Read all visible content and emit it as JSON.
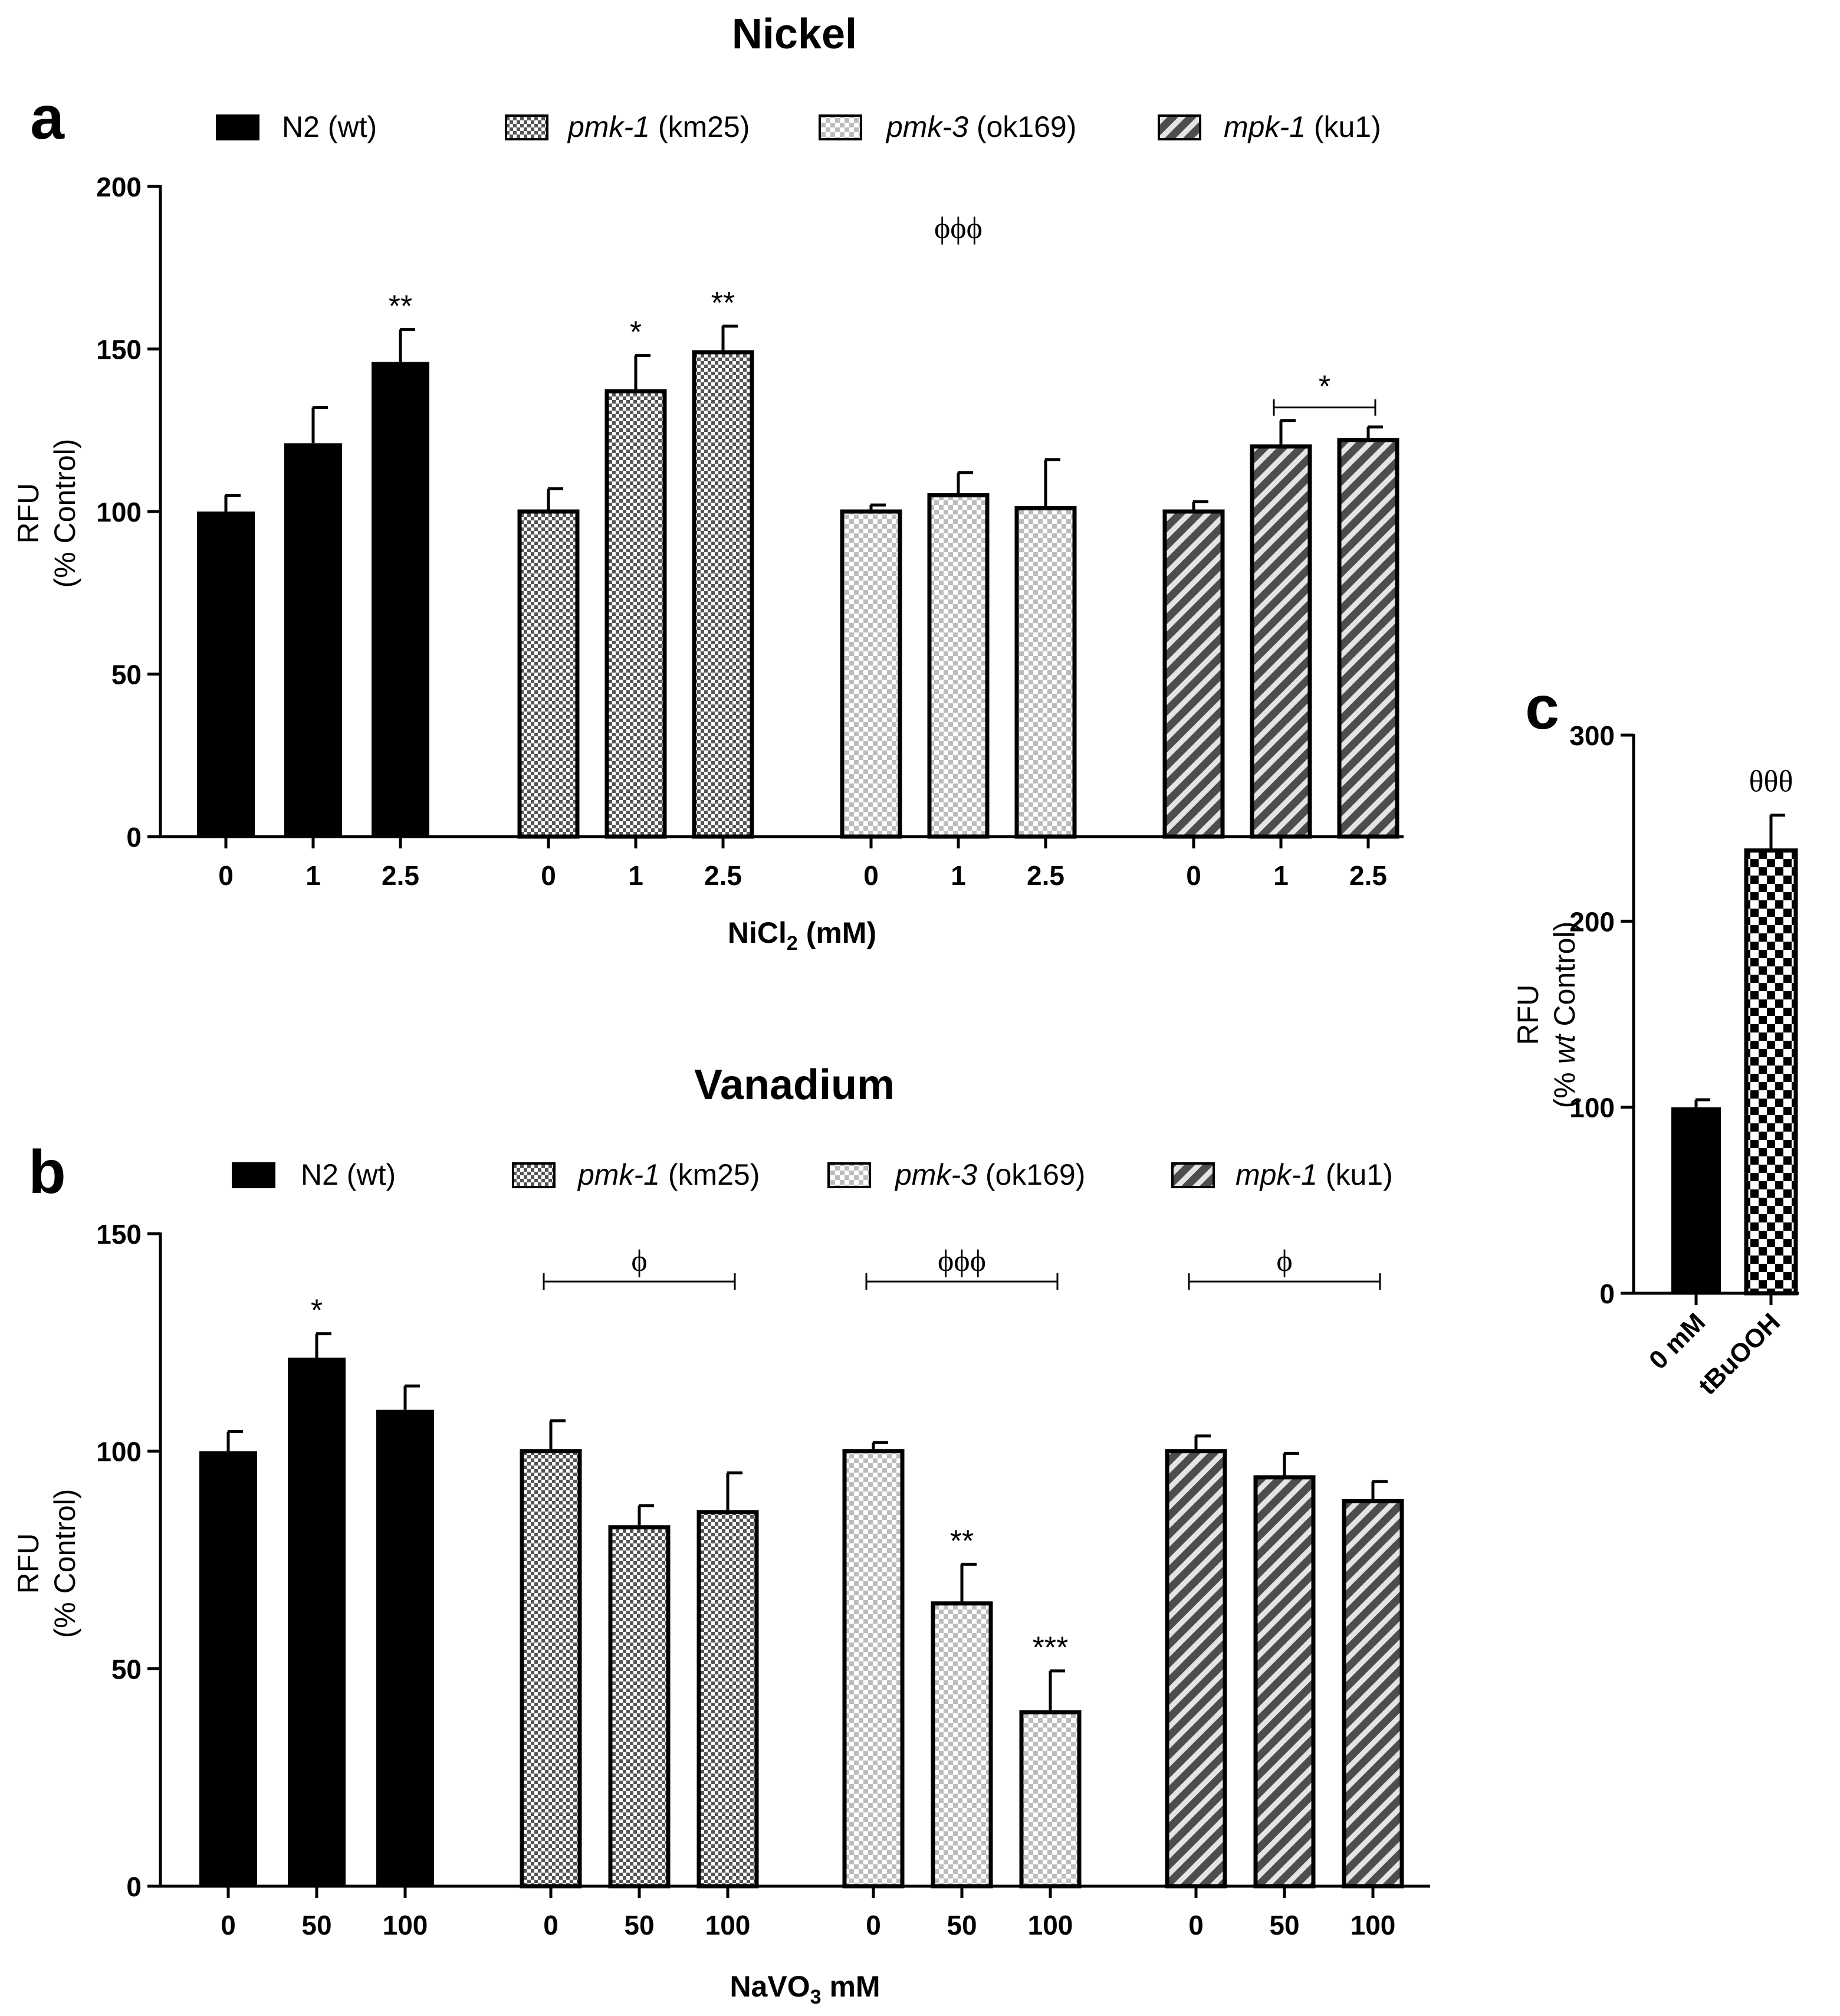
{
  "colors": {
    "black": "#000000",
    "fill_pmk1_dark": "#555555",
    "fill_pmk1_light": "#ffffff",
    "fill_pmk3_dark": "#bcbcbc",
    "fill_mpk1_dark": "#4d4d4d",
    "fill_mpk1_light": "#e4e4e4"
  },
  "chart_data": [
    {
      "panel": "a",
      "type": "bar",
      "title": "Nickel",
      "xlabel": "NiCl",
      "xlabel_sub": "2",
      "xlabel_tail": " (mM)",
      "ylabel_line1": "RFU",
      "ylabel_line2": "(% Control)",
      "ylim": [
        0,
        200
      ],
      "yticks": [
        0,
        50,
        100,
        150,
        200
      ],
      "legend_position": "top",
      "legend": [
        {
          "italic": "",
          "plain": "N2 (wt)",
          "pattern": "solid"
        },
        {
          "italic": "pmk-1",
          "plain": " (km25)",
          "pattern": "fine-check"
        },
        {
          "italic": "pmk-3",
          "plain": " (ok169)",
          "pattern": "light-check"
        },
        {
          "italic": "mpk-1",
          "plain": " (ku1)",
          "pattern": "stripes"
        }
      ],
      "groups": [
        {
          "name": "N2 (wt)",
          "pattern": "solid",
          "doses": [
            "0",
            "1",
            "2.5"
          ],
          "values": [
            100,
            121,
            146
          ],
          "errors": [
            5,
            11,
            10
          ],
          "stars": [
            "",
            "",
            "**"
          ]
        },
        {
          "name": "pmk-1 (km25)",
          "pattern": "fine-check",
          "doses": [
            "0",
            "1",
            "2.5"
          ],
          "values": [
            100,
            137,
            149
          ],
          "errors": [
            7,
            11,
            8
          ],
          "stars": [
            "",
            "*",
            "**"
          ]
        },
        {
          "name": "pmk-3 (ok169)",
          "pattern": "light-check",
          "doses": [
            "0",
            "1",
            "2.5"
          ],
          "values": [
            100,
            105,
            101
          ],
          "errors": [
            2,
            7,
            15
          ],
          "stars": [
            "",
            "",
            ""
          ]
        },
        {
          "name": "mpk-1 (ku1)",
          "pattern": "stripes",
          "doses": [
            "0",
            "1",
            "2.5"
          ],
          "values": [
            100,
            120,
            122
          ],
          "errors": [
            3,
            8,
            4
          ],
          "stars": [
            "",
            "",
            ""
          ]
        }
      ],
      "annotations": [
        {
          "text": "ϕϕϕ",
          "group": 2,
          "bracket": false,
          "y": 187
        },
        {
          "text": "*",
          "group": 3,
          "bracket": true,
          "from_bar": 1,
          "to_bar": 2,
          "y": 132
        }
      ]
    },
    {
      "panel": "b",
      "type": "bar",
      "title": "Vanadium",
      "xlabel": "NaVO",
      "xlabel_sub": "3",
      "xlabel_tail": " mM",
      "ylabel_line1": "RFU",
      "ylabel_line2": "(% Control)",
      "ylim": [
        0,
        150
      ],
      "yticks": [
        0,
        50,
        100,
        150
      ],
      "legend_position": "top",
      "legend": [
        {
          "italic": "",
          "plain": "N2 (wt)",
          "pattern": "solid"
        },
        {
          "italic": "pmk-1",
          "plain": " (km25)",
          "pattern": "fine-check"
        },
        {
          "italic": "pmk-3",
          "plain": " (ok169)",
          "pattern": "light-check"
        },
        {
          "italic": "mpk-1",
          "plain": " (ku1)",
          "pattern": "stripes"
        }
      ],
      "groups": [
        {
          "name": "N2 (wt)",
          "pattern": "solid",
          "doses": [
            "0",
            "50",
            "100"
          ],
          "values": [
            100,
            121.5,
            109.5
          ],
          "errors": [
            4.5,
            5.5,
            5.5
          ],
          "stars": [
            "",
            "*",
            ""
          ]
        },
        {
          "name": "pmk-1 (km25)",
          "pattern": "fine-check",
          "doses": [
            "0",
            "50",
            "100"
          ],
          "values": [
            100,
            82.5,
            86
          ],
          "errors": [
            7,
            5,
            9
          ],
          "stars": [
            "",
            "",
            ""
          ]
        },
        {
          "name": "pmk-3 (ok169)",
          "pattern": "light-check",
          "doses": [
            "0",
            "50",
            "100"
          ],
          "values": [
            100,
            65,
            40
          ],
          "errors": [
            2,
            9,
            9.5
          ],
          "stars": [
            "",
            "**",
            "***"
          ]
        },
        {
          "name": "mpk-1 (ku1)",
          "pattern": "stripes",
          "doses": [
            "0",
            "50",
            "100"
          ],
          "values": [
            100,
            94,
            88.5
          ],
          "errors": [
            3.5,
            5.5,
            4.5
          ],
          "stars": [
            "",
            "",
            ""
          ]
        }
      ],
      "annotations": [
        {
          "text": "ϕ",
          "group": 1,
          "bracket": true,
          "from_bar": 0,
          "to_bar": 2,
          "y": 139
        },
        {
          "text": "ϕϕϕ",
          "group": 2,
          "bracket": true,
          "from_bar": 0,
          "to_bar": 2,
          "y": 139
        },
        {
          "text": "ϕ",
          "group": 3,
          "bracket": true,
          "from_bar": 0,
          "to_bar": 2,
          "y": 139
        }
      ]
    },
    {
      "panel": "c",
      "type": "bar",
      "title": "",
      "ylabel_line1": "RFU",
      "ylabel_pre": "(% ",
      "ylabel_italic": "wt",
      "ylabel_post": " Control)",
      "ylim": [
        0,
        300
      ],
      "yticks": [
        0,
        100,
        200,
        300
      ],
      "categories": [
        "0 mM",
        "tBuOOH"
      ],
      "patterns": [
        "solid",
        "big-check"
      ],
      "values": [
        100,
        238
      ],
      "errors": [
        4,
        19
      ],
      "annotations": [
        {
          "text": "θθθ",
          "bar": 1
        }
      ]
    }
  ]
}
